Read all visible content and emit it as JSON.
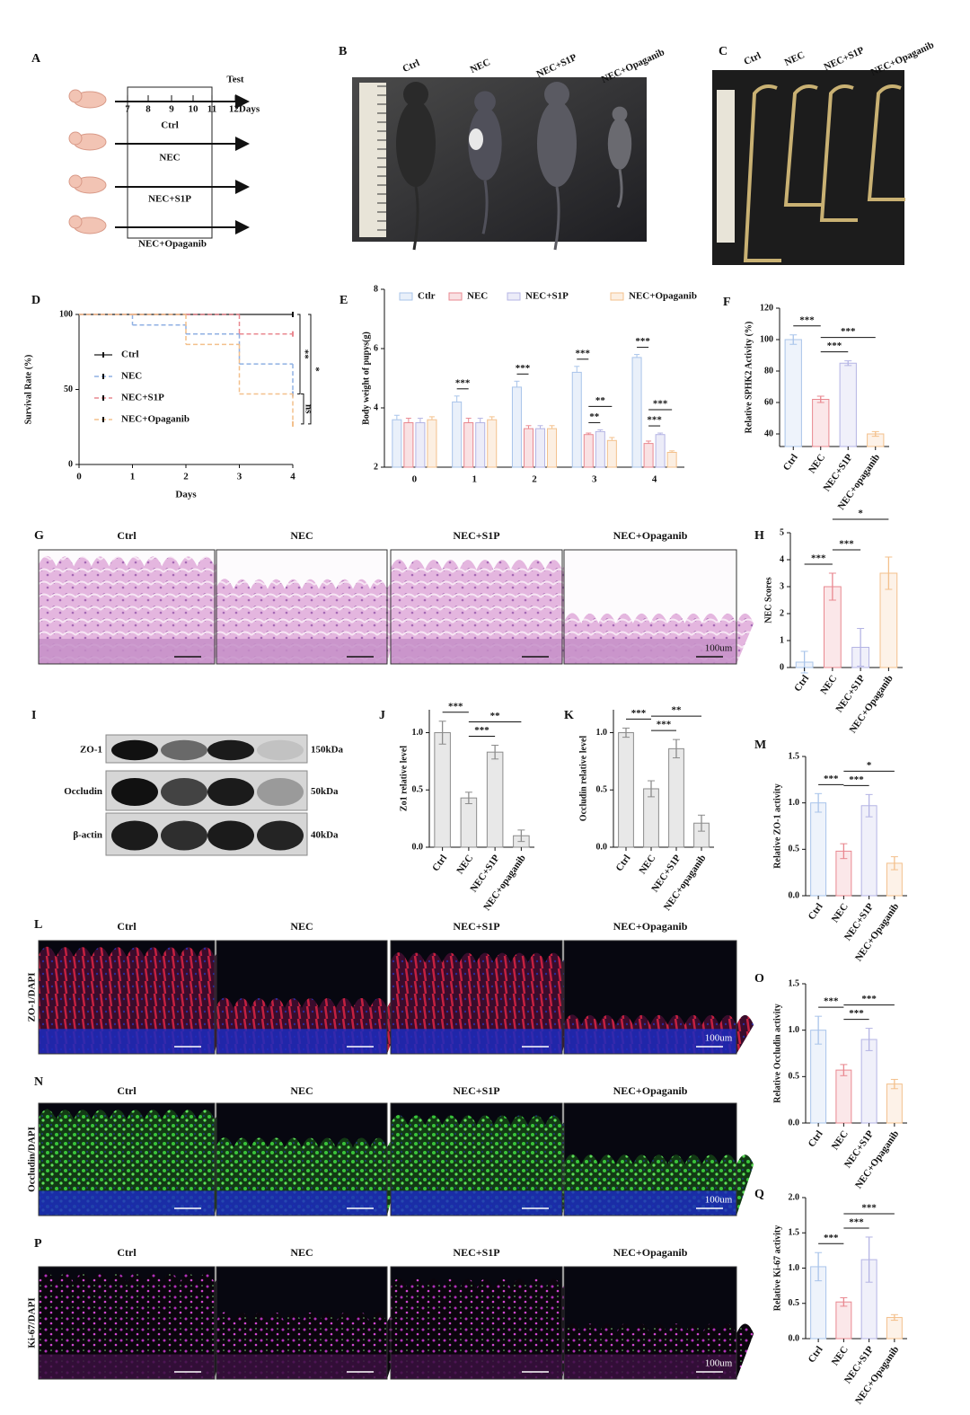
{
  "figure": {
    "A": {
      "label": "A",
      "test": "Test",
      "days": [
        "7",
        "8",
        "9",
        "10",
        "11",
        "12Days"
      ],
      "groups": [
        "Ctrl",
        "NEC",
        "NEC+S1P",
        "NEC+Opaganib"
      ]
    },
    "B": {
      "label": "B",
      "groups": [
        "Ctrl",
        "NEC",
        "NEC+S1P",
        "NEC+Opaganib"
      ]
    },
    "C": {
      "label": "C",
      "groups": [
        "Ctrl",
        "NEC",
        "NEC+S1P",
        "NEC+Opaganib"
      ]
    },
    "G": {
      "label": "G",
      "groups": [
        "Ctrl",
        "NEC",
        "NEC+S1P",
        "NEC+Opaganib"
      ],
      "scale": "100um"
    },
    "I": {
      "label": "I",
      "proteins": [
        "ZO-1",
        "Occludin",
        "β-actin"
      ],
      "sizes": [
        "150kDa",
        "50kDa",
        "40kDa"
      ]
    },
    "L": {
      "label": "L",
      "stain": "ZO-1/DAPI",
      "groups": [
        "Ctrl",
        "NEC",
        "NEC+S1P",
        "NEC+Opaganib"
      ],
      "scale": "100um"
    },
    "N": {
      "label": "N",
      "stain": "Occludin/DAPI",
      "groups": [
        "Ctrl",
        "NEC",
        "NEC+S1P",
        "NEC+Opaganib"
      ],
      "scale": "100um"
    },
    "P": {
      "label": "P",
      "stain": "Ki-67/DAPI",
      "groups": [
        "Ctrl",
        "NEC",
        "NEC+S1P",
        "NEC+Opaganib"
      ],
      "scale": "100um"
    }
  },
  "chart_data": [
    {
      "label": "D",
      "type": "line",
      "step": true,
      "ylabel": "Survival Rate (%)",
      "xlabel": "Days",
      "x": [
        0,
        1,
        2,
        3,
        4
      ],
      "xlim": [
        0,
        4
      ],
      "xticks": [
        0,
        1,
        2,
        3,
        4
      ],
      "ylim": [
        0,
        100
      ],
      "yticks": [
        0,
        50,
        100
      ],
      "series": [
        {
          "name": "Ctrl",
          "color": "#444444",
          "values": [
            100,
            100,
            100,
            100,
            100
          ]
        },
        {
          "name": "NEC",
          "color": "#8fb0e3",
          "values": [
            100,
            93,
            87,
            67,
            47
          ]
        },
        {
          "name": "NEC+S1P",
          "color": "#e98890",
          "values": [
            100,
            100,
            100,
            87,
            87
          ]
        },
        {
          "name": "NEC+Opaganib",
          "color": "#f3c08c",
          "values": [
            100,
            100,
            80,
            47,
            27
          ]
        }
      ],
      "significance": [
        "**",
        "*",
        "ns"
      ]
    },
    {
      "label": "E",
      "type": "grouped-bar",
      "ylabel": "Body weight of pupys(g)",
      "categories": [
        "0",
        "1",
        "2",
        "3",
        "4"
      ],
      "ylim": [
        2,
        8
      ],
      "yticks": [
        2,
        4,
        6,
        8
      ],
      "series": [
        {
          "name": "Ctlr",
          "color": "#a9c4ea",
          "values": [
            3.6,
            4.2,
            4.7,
            5.2,
            5.7
          ],
          "errors": [
            0.15,
            0.2,
            0.2,
            0.2,
            0.1
          ]
        },
        {
          "name": "NEC",
          "color": "#e98890",
          "values": [
            3.5,
            3.5,
            3.3,
            3.1,
            2.8
          ],
          "errors": [
            0.15,
            0.15,
            0.1,
            0.05,
            0.08
          ]
        },
        {
          "name": "NEC+S1P",
          "color": "#b4b4e4",
          "values": [
            3.5,
            3.5,
            3.3,
            3.2,
            3.1
          ],
          "errors": [
            0.15,
            0.15,
            0.1,
            0.06,
            0.05
          ]
        },
        {
          "name": "NEC+Opaganib",
          "color": "#f3c08c",
          "values": [
            3.6,
            3.6,
            3.3,
            2.9,
            2.5
          ],
          "errors": [
            0.1,
            0.1,
            0.1,
            0.1,
            0.05
          ]
        }
      ],
      "significance": [
        "***",
        "***",
        "***",
        "**",
        "**",
        "***",
        "***",
        "***"
      ]
    },
    {
      "label": "F",
      "type": "bar",
      "ylabel": "Relative SPHK2  Activity (%)",
      "categories": [
        "Ctrl",
        "NEC",
        "NEC+S1P",
        "NEC+opaganib"
      ],
      "values": [
        100,
        62,
        85,
        40
      ],
      "errors": [
        3,
        2,
        1.5,
        1.5
      ],
      "colors": [
        "#a9c4ea",
        "#e98890",
        "#b4b4e4",
        "#f3c08c"
      ],
      "ylim": [
        32,
        120
      ],
      "yticks": [
        40,
        60,
        80,
        100,
        120
      ],
      "significance": [
        "***",
        "***",
        "***"
      ]
    },
    {
      "label": "H",
      "type": "bar",
      "ylabel": "NEC Scores",
      "categories": [
        "Ctrl",
        "NEC",
        "NEC+S1P",
        "NEC+Opaganib"
      ],
      "values": [
        0.2,
        3.0,
        0.75,
        3.5
      ],
      "errors": [
        0.4,
        0.5,
        0.7,
        0.6
      ],
      "colors": [
        "#a9c4ea",
        "#e98890",
        "#b4b4e4",
        "#f3c08c"
      ],
      "ylim": [
        0,
        5
      ],
      "yticks": [
        0,
        1,
        2,
        3,
        4,
        5
      ],
      "significance": [
        "***",
        "***",
        "*"
      ]
    },
    {
      "label": "J",
      "type": "bar",
      "ylabel": "Zo1 relative level",
      "categories": [
        "Ctrl",
        "NEC",
        "NEC+S1P",
        "NEC+opaganib"
      ],
      "values": [
        1.0,
        0.43,
        0.83,
        0.1
      ],
      "errors": [
        0.1,
        0.05,
        0.06,
        0.05
      ],
      "colors": [
        "#8c8c8c",
        "#8c8c8c",
        "#8c8c8c",
        "#8c8c8c"
      ],
      "ylim": [
        0,
        1.2
      ],
      "yticks": [
        {
          "value": 0,
          "label": "0.0"
        },
        0.5,
        {
          "value": 1,
          "label": "1.0"
        }
      ],
      "significance": [
        "***",
        "***",
        "**"
      ]
    },
    {
      "label": "K",
      "type": "bar",
      "ylabel": "Occludin relative level",
      "categories": [
        "Ctrl",
        "NEC",
        "NEC+S1P",
        "NEC+opaganib"
      ],
      "values": [
        1.0,
        0.51,
        0.86,
        0.21
      ],
      "errors": [
        0.04,
        0.07,
        0.08,
        0.07
      ],
      "colors": [
        "#8c8c8c",
        "#8c8c8c",
        "#8c8c8c",
        "#8c8c8c"
      ],
      "ylim": [
        0,
        1.2
      ],
      "yticks": [
        {
          "value": 0,
          "label": "0.0"
        },
        0.5,
        {
          "value": 1,
          "label": "1.0"
        }
      ],
      "significance": [
        "***",
        "***",
        "**"
      ]
    },
    {
      "label": "M",
      "type": "bar",
      "ylabel": "Relative ZO-1 activity",
      "categories": [
        "Ctrl",
        "NEC",
        "NEC+S1P",
        "NEC+Opaganib"
      ],
      "values": [
        1.0,
        0.48,
        0.97,
        0.35
      ],
      "errors": [
        0.1,
        0.08,
        0.12,
        0.07
      ],
      "colors": [
        "#a9c4ea",
        "#e98890",
        "#b4b4e4",
        "#f3c08c"
      ],
      "ylim": [
        0,
        1.5
      ],
      "yticks": [
        {
          "value": 0,
          "label": "0.0"
        },
        0.5,
        {
          "value": 1,
          "label": "1.0"
        },
        1.5
      ],
      "significance": [
        "***",
        "***",
        "*"
      ]
    },
    {
      "label": "O",
      "type": "bar",
      "ylabel": "Relative Occludin activity",
      "categories": [
        "Ctrl",
        "NEC",
        "NEC+S1P",
        "NEC+Opaganib"
      ],
      "values": [
        1.0,
        0.57,
        0.9,
        0.42
      ],
      "errors": [
        0.15,
        0.06,
        0.12,
        0.05
      ],
      "colors": [
        "#a9c4ea",
        "#e98890",
        "#b4b4e4",
        "#f3c08c"
      ],
      "ylim": [
        0,
        1.5
      ],
      "yticks": [
        {
          "value": 0,
          "label": "0.0"
        },
        0.5,
        {
          "value": 1,
          "label": "1.0"
        },
        1.5
      ],
      "significance": [
        "***",
        "***",
        "***"
      ]
    },
    {
      "label": "Q",
      "type": "bar",
      "ylabel": "Relative Ki-67 activity",
      "categories": [
        "Ctrl",
        "NEC",
        "NEC+S1P",
        "NEC+Opaganib"
      ],
      "values": [
        1.02,
        0.52,
        1.12,
        0.3
      ],
      "errors": [
        0.2,
        0.06,
        0.32,
        0.04
      ],
      "colors": [
        "#a9c4ea",
        "#e98890",
        "#b4b4e4",
        "#f3c08c"
      ],
      "ylim": [
        0,
        2
      ],
      "yticks": [
        {
          "value": 0,
          "label": "0.0"
        },
        0.5,
        {
          "value": 1,
          "label": "1.0"
        },
        1.5,
        {
          "value": 2,
          "label": "2.0"
        }
      ],
      "significance": [
        "***",
        "***",
        "***"
      ]
    }
  ]
}
